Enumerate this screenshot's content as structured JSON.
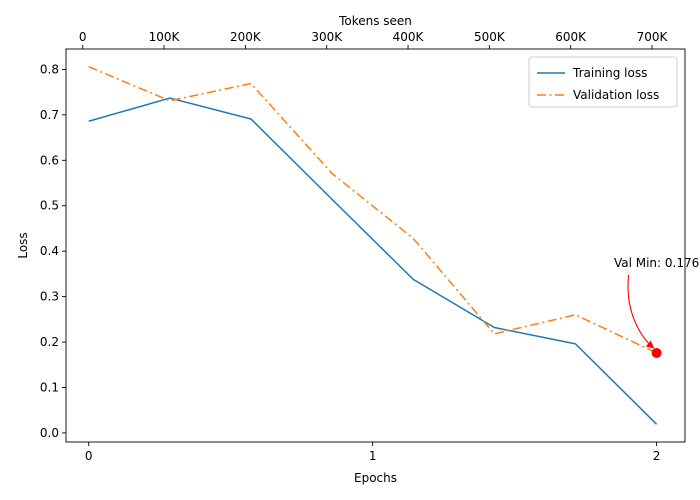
{
  "chart_data": {
    "type": "line",
    "xlabel": "Epochs",
    "ylabel": "Loss",
    "top_xlabel": "Tokens seen",
    "xlim": [
      -0.08,
      2.1
    ],
    "ylim": [
      -0.02,
      0.845
    ],
    "x_ticks": [
      0,
      1,
      2
    ],
    "x_tick_labels": [
      "0",
      "1",
      "2"
    ],
    "y_ticks": [
      0.0,
      0.1,
      0.2,
      0.3,
      0.4,
      0.5,
      0.6,
      0.7,
      0.8
    ],
    "y_tick_labels": [
      "0.0",
      "0.1",
      "0.2",
      "0.3",
      "0.4",
      "0.5",
      "0.6",
      "0.7",
      "0.8"
    ],
    "top_x_ticks": [
      0,
      100000,
      200000,
      300000,
      400000,
      500000,
      600000,
      700000
    ],
    "top_x_tick_labels": [
      "0",
      "100K",
      "200K",
      "300K",
      "400K",
      "500K",
      "600K",
      "700K"
    ],
    "top_xlim": [
      -20571,
      740571
    ],
    "legend_position": "top-right",
    "grid": false,
    "series": [
      {
        "name": "Training loss",
        "color": "#1f77b4",
        "style": "solid",
        "x": [
          0,
          0.2857,
          0.5714,
          0.8571,
          1.1429,
          1.4286,
          1.7143,
          2.0
        ],
        "y": [
          0.686,
          0.737,
          0.691,
          0.514,
          0.338,
          0.232,
          0.196,
          0.019
        ]
      },
      {
        "name": "Validation loss",
        "color": "#ff7f0e",
        "style": "dashdot",
        "x": [
          0,
          0.2857,
          0.5714,
          0.8571,
          1.1429,
          1.4286,
          1.7143,
          2.0
        ],
        "y": [
          0.806,
          0.731,
          0.769,
          0.571,
          0.428,
          0.218,
          0.26,
          0.176
        ]
      }
    ],
    "annotation": {
      "text": "Val Min: 0.176",
      "point": [
        2.0,
        0.176
      ],
      "color": "#ff0000"
    }
  }
}
